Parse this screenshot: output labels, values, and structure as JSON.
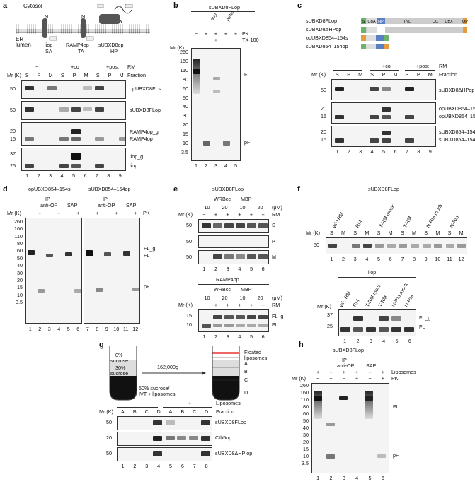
{
  "panels": {
    "a": {
      "letter": "a",
      "cytosol": "Cytosol",
      "er_lumen": [
        "ER",
        "lumen"
      ],
      "proteins": [
        {
          "name": "liop",
          "type": "SA"
        },
        {
          "name": "RAMP4op",
          "type": "TA"
        },
        {
          "name": "sUBXD8op",
          "type": "HP"
        }
      ],
      "topo_N": "N",
      "topo_C": "C",
      "op_tag": "op",
      "conditions": [
        "−",
        "+co",
        "+post"
      ],
      "rm": "RM",
      "fractions": [
        "S",
        "P",
        "M",
        "S",
        "P",
        "M",
        "S",
        "P",
        "M"
      ],
      "fraction_label": "Fraction",
      "mr": "Mr (K)",
      "gels": [
        {
          "markers": [
            "50"
          ],
          "labels": [
            "opUBXD8FLs"
          ]
        },
        {
          "markers": [
            "50"
          ],
          "labels": [
            "sUBXD8FLop"
          ]
        },
        {
          "markers": [
            "20",
            "15"
          ],
          "labels": [
            "RAMP4op_g",
            "RAMP4op"
          ]
        },
        {
          "markers": [
            "37",
            "25"
          ],
          "labels": [
            "liop_g",
            "liop"
          ]
        }
      ],
      "lanes": [
        "1",
        "2",
        "3",
        "4",
        "5",
        "6",
        "7",
        "8",
        "9"
      ]
    },
    "b": {
      "letter": "b",
      "title": "sUBXD8FLop",
      "pk_row": [
        "−",
        "+",
        "+",
        "+",
        "+"
      ],
      "tx_row": [
        "−",
        "−",
        "+",
        "",
        ""
      ],
      "pk": "PK",
      "tx": "TX-100",
      "sup": "sup",
      "pellet": "pellet",
      "mr": "Mr (K)",
      "markers": [
        "260",
        "160",
        "110",
        "80",
        "60",
        "50",
        "40",
        "30",
        "20",
        "15",
        "10",
        "3.5"
      ],
      "labels": [
        "FL",
        "pF"
      ],
      "lanes": [
        "1",
        "2",
        "3",
        "4",
        "5"
      ]
    },
    "c": {
      "letter": "c",
      "constructs": [
        "sUBXD8FLop",
        "sUBXD8ΔHPop",
        "opUBXD854–154s",
        "sUBXD854–154op"
      ],
      "domains": [
        "S",
        "UBA",
        "HP",
        "TNL",
        "CC",
        "UBX",
        "OP"
      ],
      "conditions": [
        "−",
        "+co",
        "+post"
      ],
      "rm": "RM",
      "fractions": [
        "S",
        "P",
        "M",
        "S",
        "P",
        "M",
        "S",
        "P",
        "M"
      ],
      "fraction_label": "Fraction",
      "mr": "Mr (K)",
      "gels": [
        {
          "markers": [
            "50"
          ],
          "labels": [
            "sUBXD8ΔHPop"
          ]
        },
        {
          "markers": [
            "20",
            "15"
          ],
          "labels": [
            "opUBXD854–154s_g",
            "opUBXD854–154s"
          ]
        },
        {
          "markers": [
            "20",
            "15"
          ],
          "labels": [
            "sUBXD854–154op_g",
            "sUBXD854–154op"
          ]
        }
      ],
      "lanes": [
        "1",
        "2",
        "3",
        "4",
        "5",
        "6",
        "7",
        "8",
        "9"
      ]
    },
    "d": {
      "letter": "d",
      "titles": [
        "opUBXD854–154s",
        "sUBXD854–154op"
      ],
      "ip": [
        "IP",
        "anti-OP"
      ],
      "sap": "SAP",
      "pk_row": [
        "−",
        "+",
        "−",
        "+",
        "−",
        "+",
        "−",
        "+",
        "−",
        "+",
        "−",
        "+"
      ],
      "pk": "PK",
      "mr": "Mr (K)",
      "markers": [
        "260",
        "160",
        "110",
        "80",
        "60",
        "50",
        "40",
        "30",
        "20",
        "15",
        "10",
        "3.5"
      ],
      "labels": [
        "FL_g",
        "FL",
        "pF"
      ],
      "lanes": [
        "1",
        "2",
        "3",
        "4",
        "5",
        "6",
        "7",
        "8",
        "9",
        "10",
        "11",
        "12"
      ]
    },
    "e": {
      "letter": "e",
      "top": {
        "title": "sUBXD8FLop",
        "groups": [
          "WRBcc",
          "MBP"
        ],
        "conc": [
          "10",
          "20",
          "10",
          "20"
        ],
        "unit": "(μM)",
        "rm_row": [
          "−",
          "+",
          "+",
          "+",
          "+",
          "+"
        ],
        "rm": "RM",
        "mr": "Mr (K)",
        "rows": [
          {
            "marker": "50",
            "label": "S"
          },
          {
            "marker": "50",
            "label": "P"
          },
          {
            "marker": "50",
            "label": "M"
          }
        ],
        "lanes": [
          "1",
          "2",
          "3",
          "4",
          "5",
          "6"
        ]
      },
      "bottom": {
        "title": "RAMP4op",
        "groups": [
          "WRBcc",
          "MBP"
        ],
        "conc": [
          "10",
          "20",
          "10",
          "20"
        ],
        "unit": "(μM)",
        "rm_row": [
          "−",
          "+",
          "+",
          "+",
          "+",
          "+"
        ],
        "rm": "RM",
        "mr": "Mr (K)",
        "markers": [
          "15",
          "10"
        ],
        "labels": [
          "FL_g",
          "FL"
        ],
        "lanes": [
          "1",
          "2",
          "3",
          "4",
          "5",
          "6"
        ]
      }
    },
    "f": {
      "letter": "f",
      "top": {
        "title": "sUBXD8FLop",
        "groups": [
          "w/o RM",
          "RM",
          "T-RM mock",
          "T-RM",
          "N-RM mock",
          "N-RM"
        ],
        "fractions": [
          "S",
          "M",
          "S",
          "M",
          "S",
          "M",
          "S",
          "M",
          "S",
          "M",
          "S",
          "M"
        ],
        "mr": "Mr (K)",
        "markers": [
          "50"
        ],
        "lanes": [
          "1",
          "2",
          "3",
          "4",
          "5",
          "6",
          "7",
          "8",
          "9",
          "10",
          "11",
          "12"
        ]
      },
      "bottom": {
        "title": "liop",
        "groups": [
          "w/o RM",
          "RM",
          "T-RM mock",
          "T-RM",
          "N-RM mock",
          "N-RM"
        ],
        "mr": "Mr (K)",
        "markers": [
          "37",
          "25"
        ],
        "labels": [
          "FL_g",
          "FL"
        ],
        "lanes": [
          "1",
          "2",
          "3",
          "4",
          "5",
          "6"
        ]
      }
    },
    "g": {
      "letter": "g",
      "gradient": [
        "0%",
        "sucrose",
        "30%",
        "sucrose",
        "50% sucrose/",
        "IVT + liposomes"
      ],
      "spin": "162,000g",
      "floated": [
        "Floated",
        "liposomes"
      ],
      "fractions_tube": [
        "A",
        "B",
        "C",
        "D"
      ],
      "liposomes_conditions": [
        "−",
        "+"
      ],
      "liposomes": "Liposomes",
      "fraction_label": "Fraction",
      "fractions": [
        "A",
        "B",
        "C",
        "D",
        "A",
        "B",
        "C",
        "D"
      ],
      "mr": "Mr (K)",
      "gels": [
        {
          "marker": "50",
          "label": "sUBXD8FLop"
        },
        {
          "marker": "20",
          "label": "Ctb5op"
        },
        {
          "marker": "50",
          "label": "sUBXD8ΔHP op"
        }
      ],
      "lanes": [
        "1",
        "2",
        "3",
        "4",
        "5",
        "6",
        "7",
        "8"
      ]
    },
    "h": {
      "letter": "h",
      "title": "sUBXD8FLop",
      "ip": [
        "IP",
        "anti-OP"
      ],
      "sap": "SAP",
      "lipo_row": [
        "+",
        "+",
        "+",
        "+",
        "+",
        "+"
      ],
      "pk_row": [
        "−",
        "+",
        "−",
        "+",
        "−",
        "+"
      ],
      "liposomes": "Liposomes",
      "pk": "PK",
      "mr": "Mr (K)",
      "markers": [
        "260",
        "160",
        "110",
        "80",
        "60",
        "50",
        "40",
        "30",
        "20",
        "15",
        "10",
        "3.5"
      ],
      "labels": [
        "FL",
        "pF"
      ],
      "lanes": [
        "1",
        "2",
        "3",
        "4",
        "5",
        "6"
      ]
    }
  }
}
